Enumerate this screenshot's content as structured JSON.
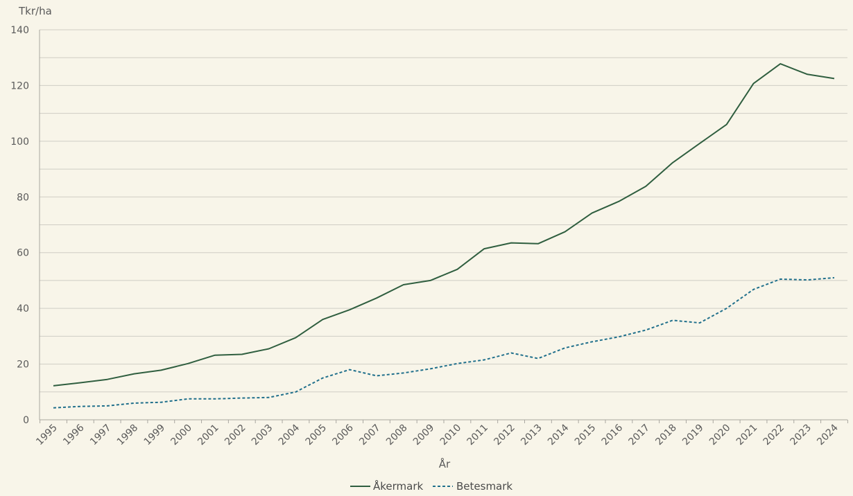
{
  "colors": {
    "background": "#f8f5e9",
    "grid": "#cfcdc4",
    "axis": "#a9a7a0",
    "akermark": "#2f5e3f",
    "betesmark": "#1f6f8b"
  },
  "chart_data": {
    "type": "line",
    "title": "",
    "ylabel": "Tkr/ha",
    "xlabel": "År",
    "ylim": [
      0,
      140
    ],
    "yticks": [
      0,
      20,
      40,
      60,
      80,
      100,
      120,
      140
    ],
    "grid": true,
    "legend_position": "bottom-center",
    "x": [
      "1995",
      "1996",
      "1997",
      "1998",
      "1999",
      "2000",
      "2001",
      "2002",
      "2003",
      "2004",
      "2005",
      "2006",
      "2007",
      "2008",
      "2009",
      "2010",
      "2011",
      "2012",
      "2013",
      "2014",
      "2015",
      "2016",
      "2017",
      "2018",
      "2019",
      "2020",
      "2021",
      "2022",
      "2023",
      "2024"
    ],
    "series": [
      {
        "name": "Åkermark",
        "style": "solid",
        "color": "#2f5e3f",
        "values": [
          12.2,
          13.3,
          14.5,
          16.5,
          17.8,
          20.2,
          23.2,
          23.5,
          25.5,
          29.5,
          36.0,
          39.5,
          43.7,
          48.5,
          50.0,
          54.0,
          61.4,
          63.5,
          63.2,
          67.5,
          74.2,
          78.4,
          83.8,
          92.3,
          99.2,
          106.0,
          120.7,
          127.8,
          124.0,
          122.5
        ]
      },
      {
        "name": "Betesmark",
        "style": "dashed",
        "color": "#1f6f8b",
        "values": [
          4.3,
          4.8,
          5.0,
          6.0,
          6.3,
          7.5,
          7.5,
          7.8,
          8.0,
          10.0,
          15.0,
          18.0,
          15.8,
          16.8,
          18.3,
          20.2,
          21.5,
          24.0,
          22.0,
          25.8,
          28.0,
          29.8,
          32.2,
          35.7,
          34.8,
          40.0,
          46.8,
          50.5,
          50.2,
          51.0
        ]
      }
    ]
  }
}
